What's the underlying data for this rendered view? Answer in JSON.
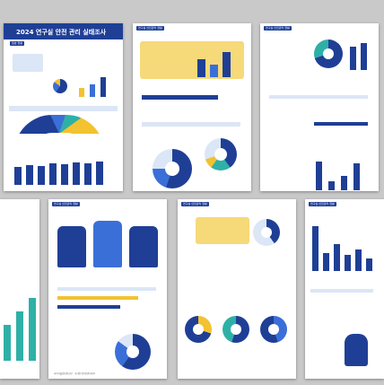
{
  "main_title": "2024 연구실 안전 관리 실태조사",
  "survey_tag": "일반 현황",
  "panel_headers": [
    "연구실 안전관리 현황",
    "연구실 안전관리 현황",
    "연구실 안전관리 현황",
    "연구실 안전관리 현황",
    "연구실 안전관리 현황"
  ],
  "footer_logo": "과학기술정보통신부 · 국가연구안전관리본부",
  "colors": {
    "navy": "#1f3f96",
    "blue": "#3b6fd8",
    "yellow": "#f2c230",
    "teal": "#2fb0a7",
    "light": "#dbe6f6"
  }
}
